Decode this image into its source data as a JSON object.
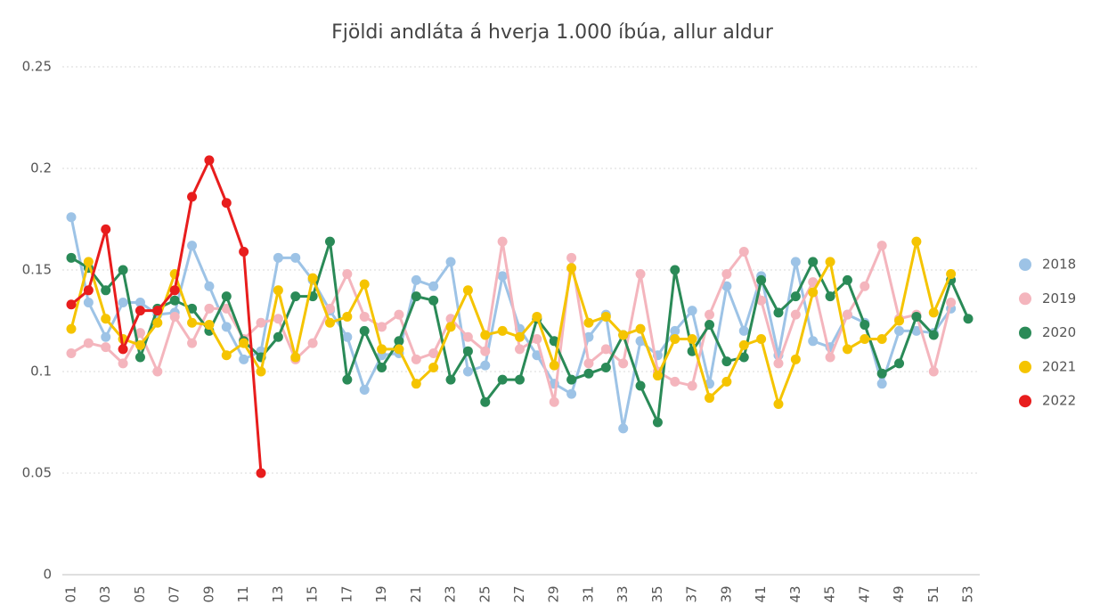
{
  "chart_data": {
    "type": "line",
    "title": "Fjöldi andláta á hverja 1.000 íbúa, allur aldur",
    "categories": [
      "01",
      null,
      "03",
      null,
      "05",
      null,
      "07",
      null,
      "09",
      null,
      "11",
      null,
      "13",
      null,
      "15",
      null,
      "17",
      null,
      "19",
      null,
      "21",
      null,
      "23",
      null,
      "25",
      null,
      "27",
      null,
      "29",
      null,
      "31",
      null,
      "33",
      null,
      "35",
      null,
      "37",
      null,
      "39",
      null,
      "41",
      null,
      "43",
      null,
      "45",
      null,
      "47",
      null,
      "49",
      null,
      "51",
      null,
      "53"
    ],
    "ylim": [
      0,
      0.25
    ],
    "yticks": [
      0,
      0.05,
      0.1,
      0.15,
      0.2,
      0.25
    ],
    "grid": true,
    "legend": "right",
    "series": [
      {
        "name": "2018",
        "color": "#9dc3e6",
        "values": [
          0.176,
          0.134,
          0.117,
          0.134,
          0.134,
          0.128,
          0.129,
          0.162,
          0.142,
          0.122,
          0.106,
          0.11,
          0.156,
          0.156,
          0.145,
          0.13,
          0.117,
          0.091,
          0.108,
          0.109,
          0.145,
          0.142,
          0.154,
          0.1,
          0.103,
          0.147,
          0.121,
          0.108,
          0.094,
          0.089,
          0.117,
          0.128,
          0.072,
          0.115,
          0.108,
          0.12,
          0.13,
          0.094,
          0.142,
          0.12,
          0.147,
          0.108,
          0.154,
          0.115,
          0.112,
          0.128,
          0.124,
          0.094,
          0.12,
          0.12,
          0.119,
          0.131,
          null
        ]
      },
      {
        "name": "2019",
        "color": "#f4b5bd",
        "values": [
          0.109,
          0.114,
          0.112,
          0.104,
          0.119,
          0.1,
          0.127,
          0.114,
          0.131,
          0.131,
          0.116,
          0.124,
          0.126,
          0.106,
          0.114,
          0.131,
          0.148,
          0.127,
          0.122,
          0.128,
          0.106,
          0.109,
          0.126,
          0.117,
          0.11,
          0.164,
          0.111,
          0.116,
          0.085,
          0.156,
          0.104,
          0.111,
          0.104,
          0.148,
          0.1,
          0.095,
          0.093,
          0.128,
          0.148,
          0.159,
          0.135,
          0.104,
          0.128,
          0.144,
          0.107,
          0.128,
          0.142,
          0.162,
          0.126,
          0.128,
          0.1,
          0.134,
          null
        ]
      },
      {
        "name": "2020",
        "color": "#2a8a57",
        "values": [
          0.156,
          0.151,
          0.14,
          0.15,
          0.107,
          0.131,
          0.135,
          0.131,
          0.12,
          0.137,
          0.115,
          0.107,
          0.117,
          0.137,
          0.137,
          0.164,
          0.096,
          0.12,
          0.102,
          0.115,
          0.137,
          0.135,
          0.096,
          0.11,
          0.085,
          0.096,
          0.096,
          0.126,
          0.115,
          0.096,
          0.099,
          0.102,
          0.118,
          0.093,
          0.075,
          0.15,
          0.11,
          0.123,
          0.105,
          0.107,
          0.145,
          0.129,
          0.137,
          0.154,
          0.137,
          0.145,
          0.123,
          0.099,
          0.104,
          0.127,
          0.118,
          0.145,
          0.126
        ]
      },
      {
        "name": "2021",
        "color": "#f5c400",
        "values": [
          0.121,
          0.154,
          0.126,
          0.116,
          0.113,
          0.124,
          0.148,
          0.124,
          0.123,
          0.108,
          0.114,
          0.1,
          0.14,
          0.107,
          0.146,
          0.124,
          0.127,
          0.143,
          0.111,
          0.111,
          0.094,
          0.102,
          0.122,
          0.14,
          0.118,
          0.12,
          0.117,
          0.127,
          0.103,
          0.151,
          0.124,
          0.127,
          0.118,
          0.121,
          0.098,
          0.116,
          0.116,
          0.087,
          0.095,
          0.113,
          0.116,
          0.084,
          0.106,
          0.139,
          0.154,
          0.111,
          0.116,
          0.116,
          0.125,
          0.164,
          0.129,
          0.148,
          null
        ]
      },
      {
        "name": "2022",
        "color": "#e81d1d",
        "values": [
          0.133,
          0.14,
          0.17,
          0.111,
          0.13,
          0.13,
          0.14,
          0.186,
          0.204,
          0.183,
          0.159,
          0.05,
          null,
          null,
          null,
          null,
          null,
          null,
          null,
          null,
          null,
          null,
          null,
          null,
          null,
          null,
          null,
          null,
          null,
          null,
          null,
          null,
          null,
          null,
          null,
          null,
          null,
          null,
          null,
          null,
          null,
          null,
          null,
          null,
          null,
          null,
          null,
          null,
          null,
          null,
          null,
          null,
          null
        ]
      }
    ]
  }
}
